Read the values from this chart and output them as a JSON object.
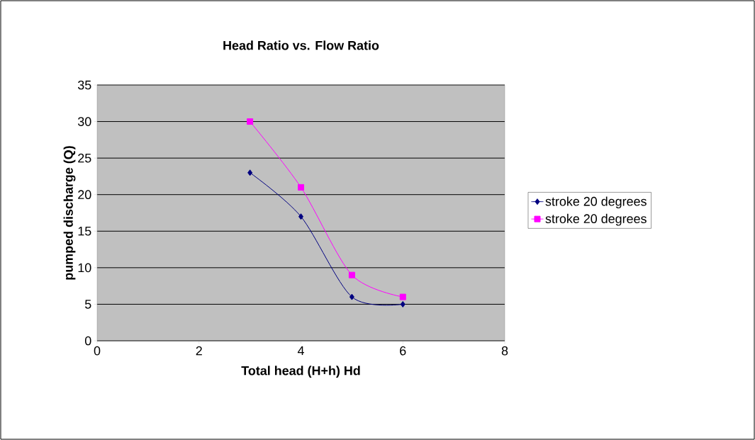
{
  "chart_data": {
    "type": "line",
    "title": "Head Ratio vs. Flow Ratio",
    "xlabel": "Total head (H+h) Hd",
    "ylabel": "pumped discharge (Q)",
    "series": [
      {
        "name": "stroke 20 degrees",
        "color": "#000080",
        "marker": "diamond",
        "x": [
          3,
          4,
          5,
          6
        ],
        "values": [
          23,
          17,
          6,
          5
        ]
      },
      {
        "name": "stroke 20 degrees",
        "color": "#ff00ff",
        "marker": "square",
        "x": [
          3,
          4,
          5,
          6
        ],
        "values": [
          30,
          21,
          9,
          6
        ]
      }
    ],
    "xlim": [
      0,
      8
    ],
    "xticks": [
      0,
      2,
      4,
      6,
      8
    ],
    "ylim": [
      0,
      35
    ],
    "yticks": [
      0,
      5,
      10,
      15,
      20,
      25,
      30,
      35
    ],
    "grid": "y",
    "legend": "right",
    "line_style": "solid"
  }
}
